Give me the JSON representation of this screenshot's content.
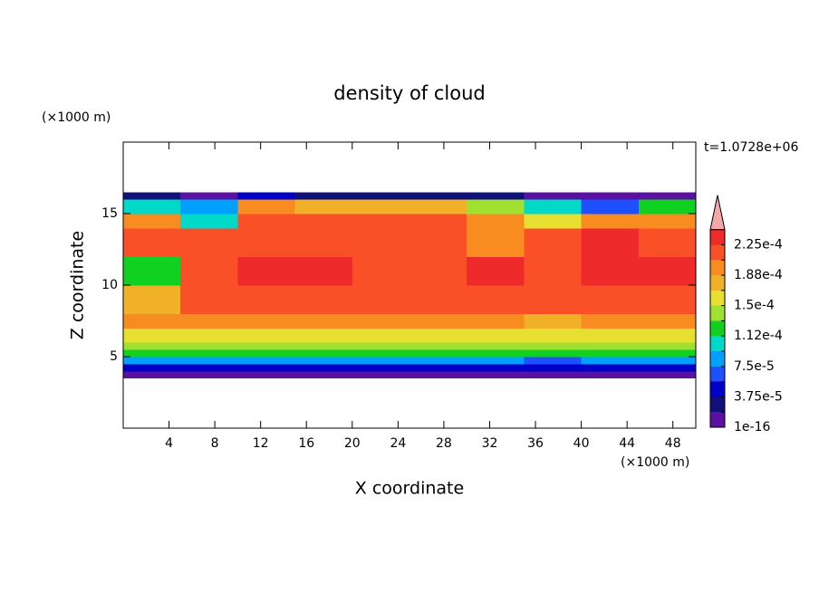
{
  "chart_data": {
    "type": "contour",
    "title": "density of cloud",
    "x_label": "X coordinate",
    "y_label": "Z coordinate",
    "x_unit": "(×1000 m)",
    "y_unit": "(×1000 m)",
    "time_label": "t=1.0728e+06",
    "xlim": [
      0,
      50
    ],
    "ylim": [
      0,
      20
    ],
    "xticks": [
      4,
      8,
      12,
      16,
      20,
      24,
      28,
      32,
      36,
      40,
      44,
      48
    ],
    "yticks": [
      5,
      10,
      15
    ],
    "x": [
      0,
      5,
      10,
      15,
      20,
      25,
      30,
      35,
      40,
      45,
      50
    ],
    "y": [
      3.5,
      4,
      4.5,
      5,
      5.5,
      6,
      7,
      8,
      10,
      12,
      14,
      15,
      16,
      16.5
    ],
    "values": [
      [
        1e-05,
        1e-05,
        1e-05,
        1e-05,
        1e-05,
        1e-05,
        1e-05,
        1e-05,
        1e-05,
        1e-05
      ],
      [
        4.7e-05,
        4.7e-05,
        4.7e-05,
        4.7e-05,
        4.7e-05,
        4.7e-05,
        4.7e-05,
        4.7e-05,
        4.7e-05,
        4.7e-05
      ],
      [
        8.4e-05,
        8.4e-05,
        8.4e-05,
        8.4e-05,
        8.4e-05,
        8.4e-05,
        8.4e-05,
        6.6e-05,
        8.4e-05,
        8.4e-05
      ],
      [
        0.000122,
        0.000122,
        0.000122,
        0.000122,
        0.000122,
        0.000122,
        0.000122,
        0.000122,
        0.000122,
        0.000122
      ],
      [
        0.00014,
        0.00014,
        0.00014,
        0.00014,
        0.00014,
        0.00014,
        0.00014,
        0.00014,
        0.00014,
        0.00014
      ],
      [
        0.00016,
        0.00016,
        0.00016,
        0.00016,
        0.00016,
        0.00016,
        0.00016,
        0.00016,
        0.00016,
        0.00016
      ],
      [
        0.000197,
        0.000197,
        0.000197,
        0.000197,
        0.000197,
        0.000197,
        0.000197,
        0.000178,
        0.000197,
        0.000197
      ],
      [
        0.000178,
        0.000215,
        0.000215,
        0.000215,
        0.000215,
        0.000215,
        0.000215,
        0.000215,
        0.000215,
        0.000215
      ],
      [
        0.000122,
        0.000215,
        0.000234,
        0.000234,
        0.000215,
        0.000215,
        0.000234,
        0.000215,
        0.000234,
        0.000234
      ],
      [
        0.000215,
        0.000215,
        0.000215,
        0.000215,
        0.000215,
        0.000215,
        0.000197,
        0.000215,
        0.000234,
        0.000215
      ],
      [
        0.000197,
        0.000103,
        0.000215,
        0.000215,
        0.000215,
        0.000215,
        0.000197,
        0.00016,
        0.000197,
        0.000197
      ],
      [
        0.000103,
        8.4e-05,
        0.000197,
        0.000178,
        0.000178,
        0.000178,
        0.00014,
        0.000103,
        6.6e-05,
        0.000122
      ],
      [
        2.8e-05,
        1e-05,
        4.7e-05,
        2.8e-05,
        2.8e-05,
        2.8e-05,
        2.8e-05,
        1e-05,
        1e-05,
        1e-05
      ]
    ],
    "levels": [
      {
        "value": 1e-16,
        "label": "1e-16"
      },
      1.875e-05,
      {
        "value": 3.75e-05,
        "label": "3.75e-5"
      },
      5.625e-05,
      {
        "value": 7.5e-05,
        "label": "7.5e-5"
      },
      9.375e-05,
      {
        "value": 0.0001125,
        "label": "1.12e-4"
      },
      0.00013125,
      {
        "value": 0.00015,
        "label": "1.5e-4"
      },
      0.00016875,
      {
        "value": 0.0001875,
        "label": "1.88e-4"
      },
      0.00020625,
      {
        "value": 0.000225,
        "label": "2.25e-4"
      },
      0.00024375
    ],
    "colors": [
      "#5a10a0",
      "#10107a",
      "#0000c8",
      "#1e50ff",
      "#00a0ff",
      "#00d8c8",
      "#10d020",
      "#a0e030",
      "#e8e030",
      "#f0b028",
      "#f88c20",
      "#fa5028",
      "#ee2a2a"
    ],
    "extend_color": "#f4a8a8"
  }
}
